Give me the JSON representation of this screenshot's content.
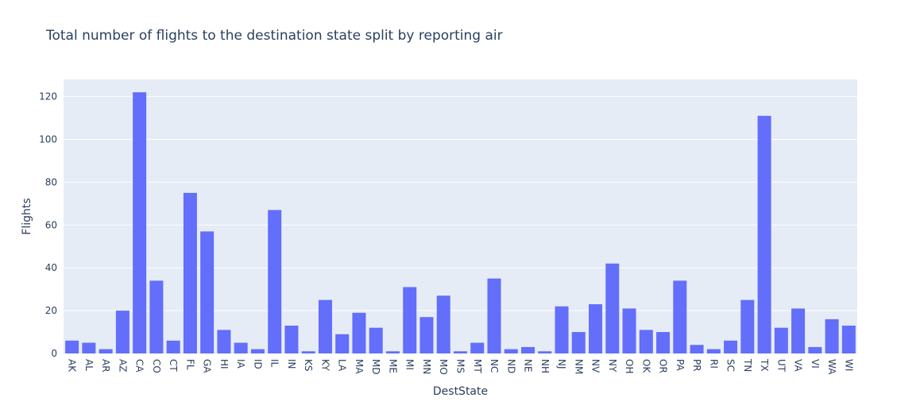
{
  "chart_data": {
    "type": "bar",
    "title": "Total number of flights to the destination state split by reporting air",
    "xlabel": "DestState",
    "ylabel": "Flights",
    "ylim": [
      0,
      128
    ],
    "yticks": [
      0,
      20,
      40,
      60,
      80,
      100,
      120
    ],
    "grid": true,
    "colors": {
      "bar": "#636efa",
      "plot_bg": "#e5ecf6",
      "grid": "#ffffff",
      "text": "#2a3f5f"
    },
    "categories": [
      "AK",
      "AL",
      "AR",
      "AZ",
      "CA",
      "CO",
      "CT",
      "FL",
      "GA",
      "HI",
      "IA",
      "ID",
      "IL",
      "IN",
      "KS",
      "KY",
      "LA",
      "MA",
      "MD",
      "ME",
      "MI",
      "MN",
      "MO",
      "MS",
      "MT",
      "NC",
      "ND",
      "NE",
      "NH",
      "NJ",
      "NM",
      "NV",
      "NY",
      "OH",
      "OK",
      "OR",
      "PA",
      "PR",
      "RI",
      "SC",
      "TN",
      "TX",
      "UT",
      "VA",
      "VI",
      "WA",
      "WI"
    ],
    "values": [
      6,
      5,
      2,
      20,
      122,
      34,
      6,
      75,
      57,
      11,
      5,
      2,
      67,
      13,
      1,
      25,
      9,
      19,
      12,
      1,
      31,
      17,
      27,
      1,
      5,
      35,
      2,
      3,
      1,
      22,
      10,
      23,
      42,
      21,
      11,
      10,
      34,
      4,
      2,
      6,
      25,
      111,
      12,
      21,
      3,
      16,
      13
    ]
  }
}
